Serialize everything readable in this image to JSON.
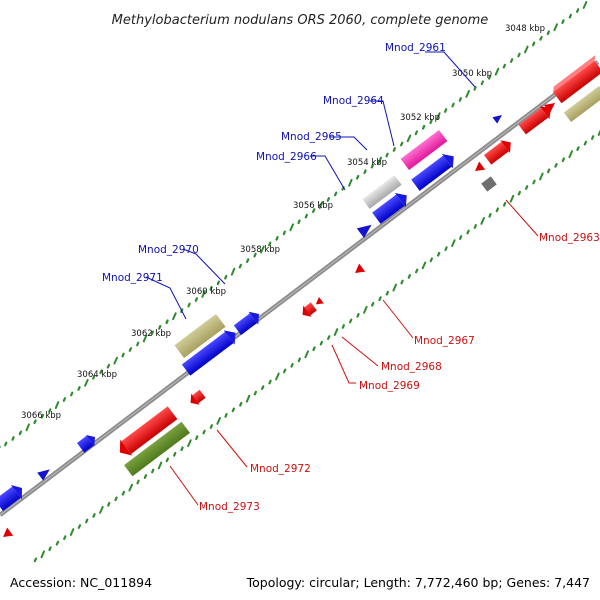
{
  "title": "Methylobacterium nodulans ORS 2060, complete genome",
  "footer": {
    "accession": "Accession: NC_011894",
    "topology": "Topology: circular; Length: 7,772,460 bp; Genes: 7,447"
  },
  "colors": {
    "backbone": "#808080",
    "tick_top": "#2e8b2e",
    "tick_bottom": "#2e8b2e",
    "label_top": "#1010b8",
    "label_bottom": "#cc1010"
  },
  "kbp_labels": [
    "3048 kbp",
    "3050 kbp",
    "3052 kbp",
    "3054 kbp",
    "3056 kbp",
    "3058 kbp",
    "3060 kbp",
    "3062 kbp",
    "3064 kbp",
    "3066 kbp"
  ],
  "genes_top": [
    "Mnod_2961",
    "Mnod_2964",
    "Mnod_2965",
    "Mnod_2966",
    "Mnod_2970",
    "Mnod_2971"
  ],
  "genes_bottom": [
    "Mnod_2963",
    "Mnod_2967",
    "Mnod_2968",
    "Mnod_2969",
    "Mnod_2972",
    "Mnod_2973"
  ]
}
